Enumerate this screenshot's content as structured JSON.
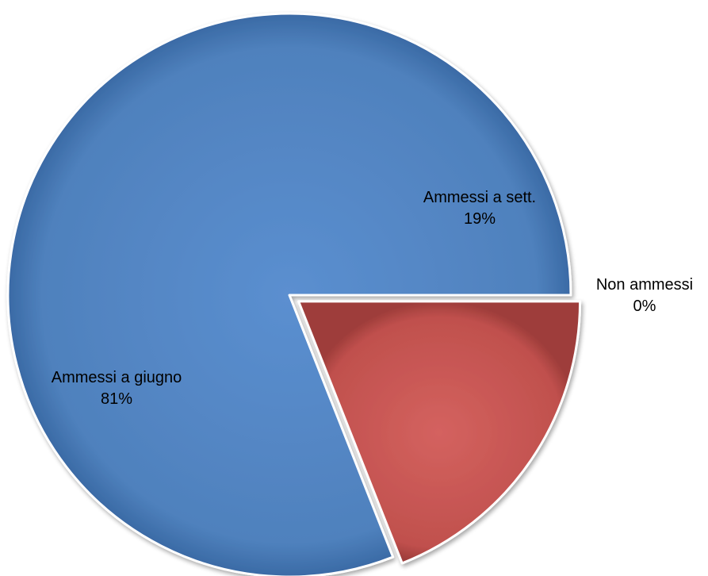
{
  "chart_data": {
    "type": "pie",
    "title": "",
    "categories": [
      "Ammessi a giugno",
      "Ammessi a sett.",
      "Non ammessi"
    ],
    "values": [
      81,
      19,
      0
    ],
    "labels": [
      {
        "name": "Ammessi a giugno",
        "percent": "81%"
      },
      {
        "name": "Ammessi a sett.",
        "percent": "19%"
      },
      {
        "name": "Non ammessi",
        "percent": "0%"
      }
    ],
    "colors": [
      "#4F81BD",
      "#C0504D",
      "#9BBB59"
    ],
    "exploded_slice": "Ammessi a sett.",
    "legend": "none",
    "start_angle": "3 o'clock, counter-clockwise",
    "style": "3D bevel"
  }
}
